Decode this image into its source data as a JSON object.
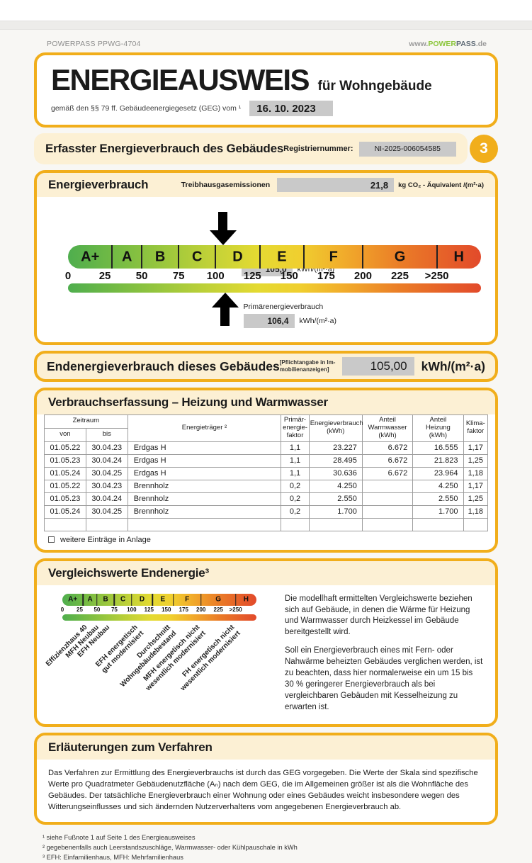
{
  "page": {
    "header_left": "POWERPASS PPWG-4704",
    "header_right": {
      "www": "www.",
      "power": "POWER",
      "pass": "PASS",
      "de": ".de"
    }
  },
  "title": {
    "main": "ENERGIEAUSWEIS",
    "sub": "für Wohngebäude",
    "law": "gemäß den §§ 79 ff. Gebäudeenergiegesetz (GEG) vom ¹",
    "date": "16. 10. 2023"
  },
  "section_bar": {
    "title": "Erfasster Energieverbrauch des Gebäudes",
    "reg_label": "Registriernummer:",
    "reg_value": "NI-2025-006054585",
    "page_badge": "3"
  },
  "energy": {
    "title": "Energieverbrauch",
    "ghg_label": "Treibhausgasemissionen",
    "ghg_value": "21,8",
    "ghg_unit": "kg CO₂ - Äquivalent  /(m²·a)",
    "end_label": "Endenergieverbrauch",
    "end_value": "105,0",
    "end_unit": "kWh/(m²·a)",
    "end_numeric": 105.0,
    "primary_label": "Primärenergieverbrauch",
    "primary_value": "106,4",
    "primary_unit": "kWh/(m²·a)",
    "primary_numeric": 106.4
  },
  "scale": {
    "max": 280,
    "classes": [
      {
        "label": "A+",
        "max": 30
      },
      {
        "label": "A",
        "max": 50
      },
      {
        "label": "B",
        "max": 75
      },
      {
        "label": "C",
        "max": 100
      },
      {
        "label": "D",
        "max": 130
      },
      {
        "label": "E",
        "max": 160
      },
      {
        "label": "F",
        "max": 200
      },
      {
        "label": "G",
        "max": 250
      },
      {
        "label": "H",
        "max": 280
      }
    ],
    "ticks": [
      "0",
      "25",
      "50",
      "75",
      "100",
      "125",
      "150",
      "175",
      "200",
      "225",
      ">250"
    ],
    "tick_values": [
      0,
      25,
      50,
      75,
      100,
      125,
      150,
      175,
      200,
      225,
      250
    ],
    "gradient_colors": [
      "#4fae4e",
      "#72ba44",
      "#9ac73d",
      "#c3d237",
      "#e4da32",
      "#f0cf2f",
      "#f1ab2b",
      "#ea7b27",
      "#e24a2b"
    ],
    "gradient_stops": [
      0,
      11,
      23,
      35,
      46,
      56,
      67,
      81,
      100
    ]
  },
  "end_banner": {
    "title": "Endenergieverbrauch dieses Gebäudes",
    "note": "[Pflichtangabe in Im-\nmobilienanzeigen]",
    "value": "105,00",
    "unit": "kWh/(m²·a)"
  },
  "consumption": {
    "title": "Verbrauchserfassung – Heizung und Warmwasser",
    "header": {
      "zeitraum": "Zeitraum",
      "von": "von",
      "bis": "bis",
      "traeger": "Energieträger ²",
      "pef": "Primär-\nenergie-\nfaktor",
      "verbrauch": "Energieverbrauch\n(kWh)",
      "ww": "Anteil\nWarmwasser\n(kWh)",
      "heizung": "Anteil\nHeizung\n(kWh)",
      "klima": "Klima-\nfaktor"
    },
    "rows": [
      [
        "01.05.22",
        "30.04.23",
        "Erdgas H",
        "1,1",
        "23.227",
        "6.672",
        "16.555",
        "1,17"
      ],
      [
        "01.05.23",
        "30.04.24",
        "Erdgas H",
        "1,1",
        "28.495",
        "6.672",
        "21.823",
        "1,25"
      ],
      [
        "01.05.24",
        "30.04.25",
        "Erdgas H",
        "1,1",
        "30.636",
        "6.672",
        "23.964",
        "1,18"
      ],
      [
        "01.05.22",
        "30.04.23",
        "Brennholz",
        "0,2",
        "4.250",
        "",
        "4.250",
        "1,17"
      ],
      [
        "01.05.23",
        "30.04.24",
        "Brennholz",
        "0,2",
        "2.550",
        "",
        "2.550",
        "1,25"
      ],
      [
        "01.05.24",
        "30.04.25",
        "Brennholz",
        "0,2",
        "1.700",
        "",
        "1.700",
        "1,18"
      ],
      [
        "",
        "",
        "",
        "",
        "",
        "",
        "",
        ""
      ]
    ],
    "more_label": "weitere Einträge in Anlage"
  },
  "comparison": {
    "title": "Vergleichswerte Endenergie³",
    "labels": [
      {
        "value": 30,
        "lines": [
          "Effizienzhaus 40"
        ]
      },
      {
        "value": 47,
        "lines": [
          "MFH Neubau"
        ]
      },
      {
        "value": 63,
        "lines": [
          "EFH Neubau"
        ]
      },
      {
        "value": 103,
        "lines": [
          "EFH energetisch",
          "gut modernisiert"
        ]
      },
      {
        "value": 150,
        "lines": [
          "Durchschnitt",
          "Wohngebäudebestand"
        ]
      },
      {
        "value": 193,
        "lines": [
          "MFH energetisch nicht",
          "wesentlich modernisiert"
        ]
      },
      {
        "value": 243,
        "lines": [
          "FH energetisch nicht",
          "wesentlich modernisiert"
        ]
      }
    ],
    "paragraphs": [
      "Die modellhaft ermittelten Vergleichswerte beziehen sich auf Gebäude, in denen die Wärme für Heizung und Warmwasser durch Heizkessel im Gebäude bereitgestellt wird.",
      "Soll ein Energieverbrauch eines mit Fern- oder Nahwärme beheizten Gebäudes verglichen werden, ist zu beachten, dass hier normalerweise ein um 15 bis 30 % geringerer Energieverbrauch als bei vergleichbaren Gebäuden mit Kesselheizung zu erwarten ist."
    ]
  },
  "method": {
    "title": "Erläuterungen zum Verfahren",
    "text": "Das Verfahren zur Ermittlung des Energieverbrauchs ist durch das GEG vorgegeben. Die Werte der Skala sind spezifische Werte pro Quadratmeter Gebäudenutzfläche (Aₙ) nach dem GEG, die im Allgemeinen größer ist als die Wohnfläche des Gebäudes. Der tatsächliche Energieverbrauch einer Wohnung oder eines Gebäudes weicht insbesondere wegen des Witterungseinflusses und sich ändernden Nutzerverhaltens vom angegebenen Energieverbrauch ab."
  },
  "footnotes": [
    "¹ siehe Fußnote 1 auf Seite 1 des Energieausweises",
    "² gegebenenfalls auch Leerstandszuschläge, Warmwasser- oder Kühlpauschale in kWh",
    "³ EFH: Einfamilienhaus, MFH: Mehrfamilienhaus"
  ],
  "colors": {
    "gold": "#f1ae1b",
    "cream": "#fcf0d4",
    "value_box_gray": "#c9c9c9",
    "logo_green": "#8cc63c",
    "logo_gray": "#5f6b76"
  }
}
